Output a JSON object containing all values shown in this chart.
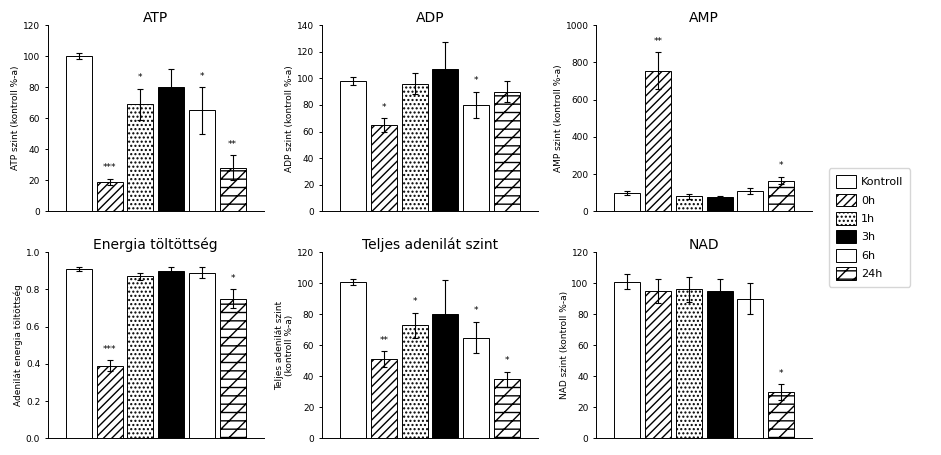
{
  "subplots": [
    {
      "title": "ATP",
      "ylabel": "ATP szint (kontroll %-a)",
      "ylim": [
        0,
        120
      ],
      "yticks": [
        0,
        20,
        40,
        60,
        80,
        100,
        120
      ],
      "values": [
        100,
        19,
        69,
        80,
        65,
        28
      ],
      "errors": [
        2,
        2,
        10,
        12,
        15,
        8
      ],
      "annotations": [
        "",
        "***",
        "*",
        "",
        "*",
        "**"
      ]
    },
    {
      "title": "ADP",
      "ylabel": "ADP szint (kontroll %-a)",
      "ylim": [
        0,
        140
      ],
      "yticks": [
        0,
        20,
        40,
        60,
        80,
        100,
        120,
        140
      ],
      "values": [
        98,
        65,
        96,
        107,
        80,
        90
      ],
      "errors": [
        3,
        5,
        8,
        20,
        10,
        8
      ],
      "annotations": [
        "",
        "*",
        "",
        "",
        "*",
        ""
      ]
    },
    {
      "title": "AMP",
      "ylabel": "AMP szint (kontroll %-a)",
      "ylim": [
        0,
        1000
      ],
      "yticks": [
        0,
        200,
        400,
        600,
        800,
        1000
      ],
      "values": [
        100,
        755,
        80,
        75,
        110,
        165
      ],
      "errors": [
        10,
        100,
        15,
        10,
        15,
        20
      ],
      "annotations": [
        "",
        "**",
        "",
        "",
        "",
        "*"
      ]
    },
    {
      "title": "Energia töltöttség",
      "ylabel": "Adenilát energia töltöttség",
      "ylim": [
        0,
        1.0
      ],
      "yticks": [
        0,
        0.2,
        0.4,
        0.6,
        0.8,
        1.0
      ],
      "values": [
        0.91,
        0.39,
        0.87,
        0.9,
        0.89,
        0.75
      ],
      "errors": [
        0.01,
        0.03,
        0.02,
        0.02,
        0.03,
        0.05
      ],
      "annotations": [
        "",
        "***",
        "",
        "",
        "",
        "*"
      ]
    },
    {
      "title": "Teljes adenilát szint",
      "ylabel": "Teljes adenilát szint\n(kontroll %-a)",
      "ylim": [
        0,
        120
      ],
      "yticks": [
        0,
        20,
        40,
        60,
        80,
        100,
        120
      ],
      "values": [
        101,
        51,
        73,
        80,
        65,
        38
      ],
      "errors": [
        2,
        5,
        8,
        22,
        10,
        5
      ],
      "annotations": [
        "",
        "**",
        "*",
        "",
        "*",
        "*"
      ]
    },
    {
      "title": "NAD",
      "ylabel": "NAD szint (kontroll %-a)",
      "ylim": [
        0,
        120
      ],
      "yticks": [
        0,
        20,
        40,
        60,
        80,
        100,
        120
      ],
      "values": [
        101,
        95,
        96,
        95,
        90,
        30
      ],
      "errors": [
        5,
        8,
        8,
        8,
        10,
        5
      ],
      "annotations": [
        "",
        "",
        "",
        "",
        "",
        "*"
      ]
    }
  ],
  "legend_labels": [
    "Kontroll",
    "0h",
    "1h",
    "3h",
    "6h",
    "24h"
  ],
  "facecolors": [
    "white",
    "white",
    "white",
    "black",
    "white",
    "white"
  ],
  "hatches": [
    "",
    "////",
    "....",
    "",
    "----",
    "----"
  ],
  "figure_width": 9.41,
  "figure_height": 4.55
}
